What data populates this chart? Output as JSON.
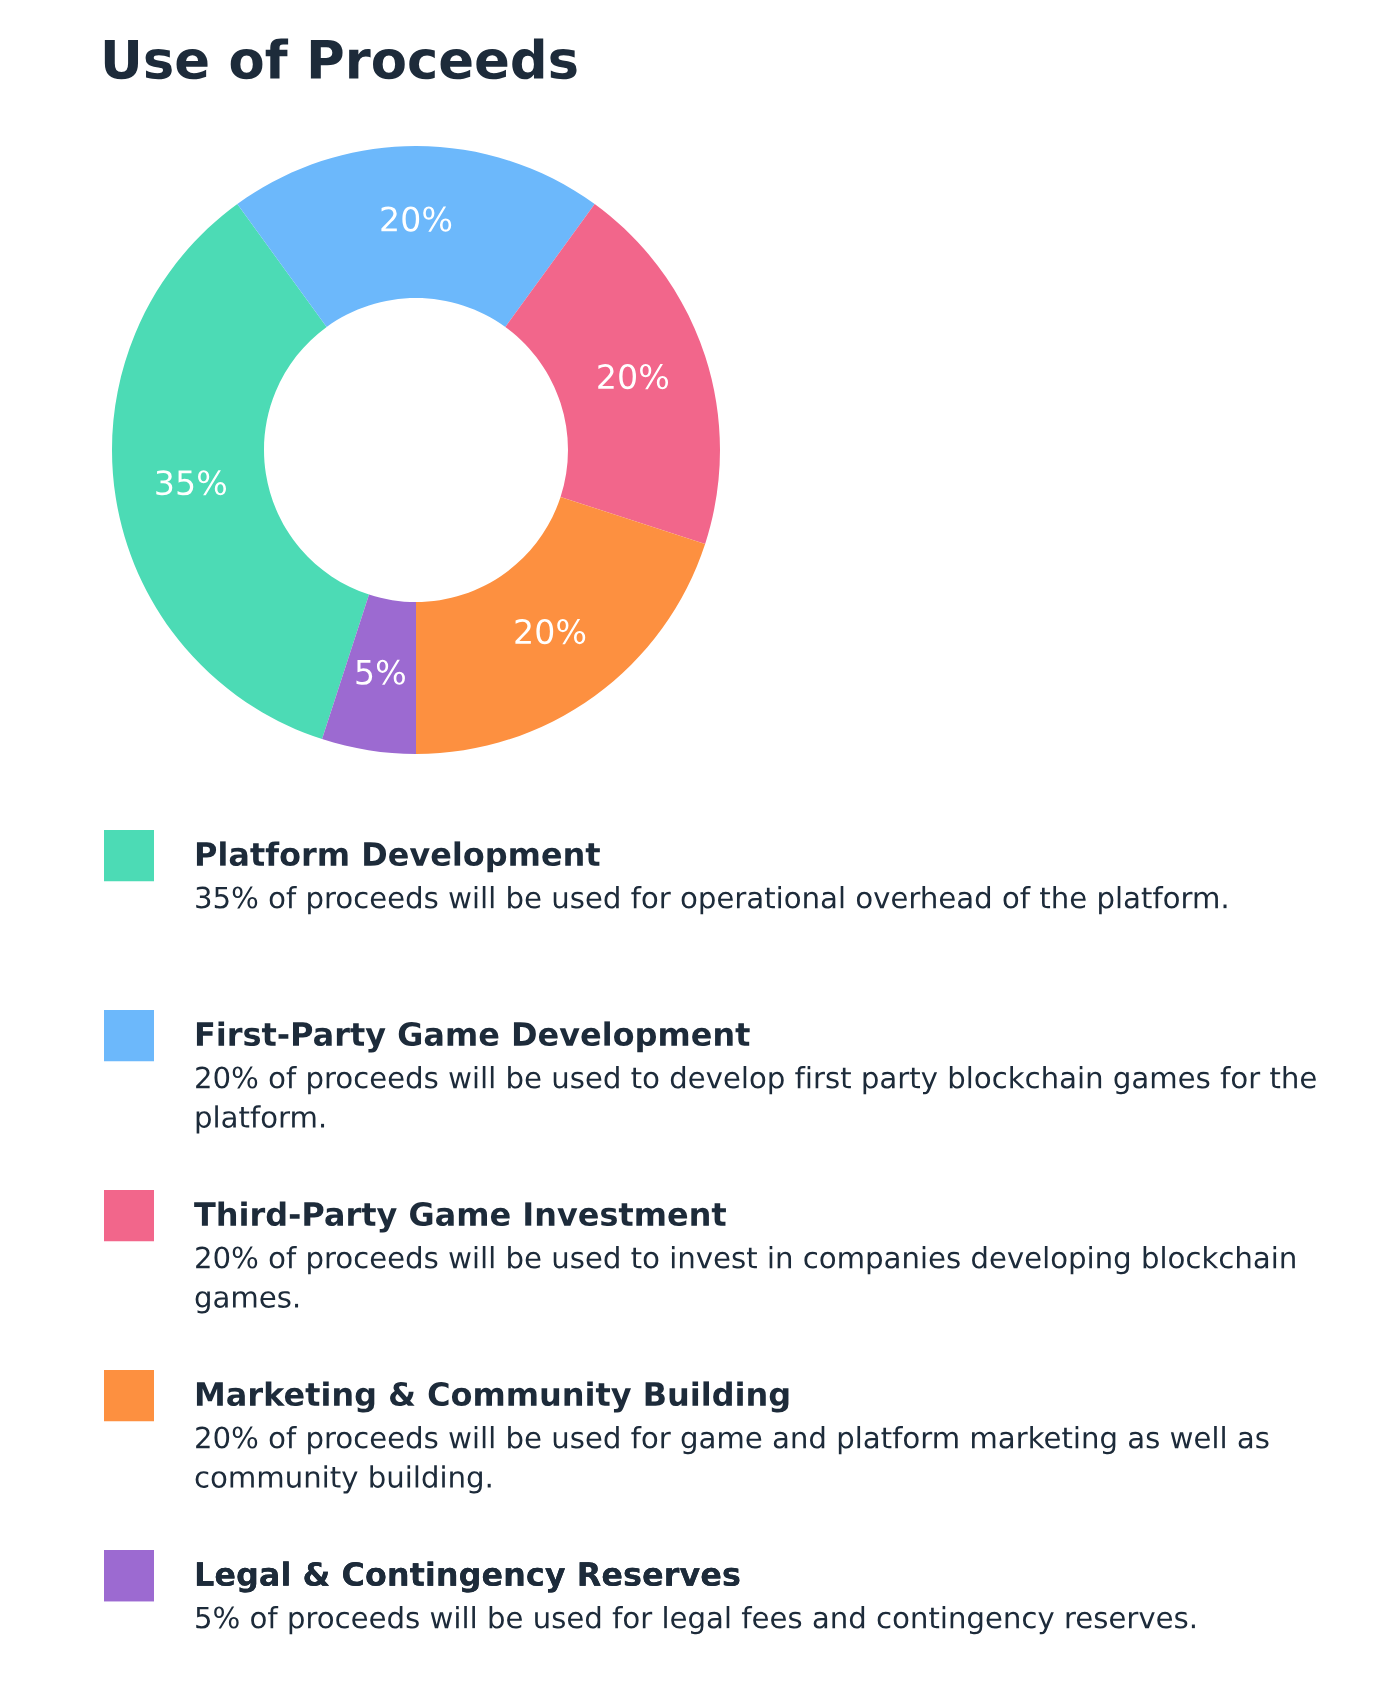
{
  "chart_data": {
    "type": "donut",
    "title": "Use of Proceeds",
    "categories": [
      "Platform Development",
      "First-Party Game Development",
      "Third-Party Game Investment",
      "Marketing & Community Building",
      "Legal & Contingency Reserves"
    ],
    "values": [
      35,
      20,
      20,
      20,
      5
    ],
    "colors": [
      "#4cdbb5",
      "#6cb8fb",
      "#f2668b",
      "#fd9040",
      "#9c6ad1"
    ],
    "value_labels": [
      "35%",
      "20%",
      "20%",
      "20%",
      "5%"
    ],
    "legend": "bottom",
    "annotations": [
      "35% of proceeds will be used for operational overhead of the platform.",
      "20% of proceeds will be used to develop first party blockchain games for the platform.",
      "20% of proceeds will be used to invest in companies developing blockchain games.",
      "20% of proceeds will be used for game and platform marketing as well as community building.",
      "5% of proceeds will be used for legal fees and contingency reserves."
    ]
  }
}
